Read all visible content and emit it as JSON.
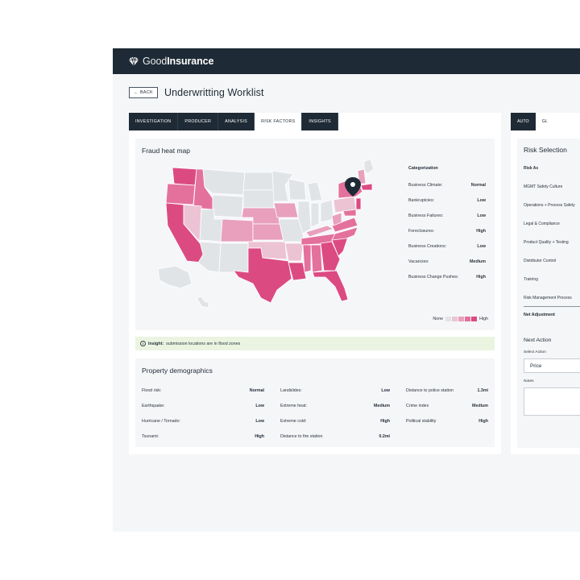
{
  "app": {
    "brand_light": "Good",
    "brand_bold": "Insurance",
    "colors": {
      "topbar": "#1e2a35",
      "accent": "#e0457b",
      "insight_bg": "#eaf4e1"
    }
  },
  "header": {
    "back_label": "BACK",
    "title": "Underwritting Worklist"
  },
  "tabs": [
    {
      "label": "INVESTIGATION",
      "active": false
    },
    {
      "label": "PRODUCER",
      "active": false
    },
    {
      "label": "ANALYSIS",
      "active": false
    },
    {
      "label": "RISK FACTORS",
      "active": true
    },
    {
      "label": "INSIGHTS",
      "active": false
    }
  ],
  "heatmap": {
    "title": "Fraud heat map",
    "categorization_title": "Categorization",
    "categories": [
      {
        "label": "Business Climate:",
        "value": "Normal"
      },
      {
        "label": "Bankruptcies:",
        "value": "Low"
      },
      {
        "label": "Business Failures:",
        "value": "Low"
      },
      {
        "label": "Foreclosures:",
        "value": "High"
      },
      {
        "label": "Business Creations:",
        "value": "Low"
      },
      {
        "label": "Vacancies:",
        "value": "Medium"
      },
      {
        "label": "Business Change Pushes:",
        "value": "High"
      }
    ],
    "legend_low": "None",
    "legend_high": "High",
    "legend_colors": [
      "#e1e4e7",
      "#ecc3d3",
      "#e8a0bc",
      "#e4719c",
      "#dc4a82"
    ]
  },
  "insight": {
    "prefix": "Insight:",
    "text": "submission locations are in flood zones"
  },
  "demographics": {
    "title": "Property demographics",
    "rows": [
      [
        {
          "label": "Flood risk:",
          "value": "Normal"
        },
        {
          "label": "Landslides:",
          "value": "Low"
        },
        {
          "label": "Distance to police station",
          "value": "1.3mi"
        }
      ],
      [
        {
          "label": "Earthquake:",
          "value": "Low"
        },
        {
          "label": "Extreme heat:",
          "value": "Medium"
        },
        {
          "label": "Crime index",
          "value": "Medium"
        }
      ],
      [
        {
          "label": "Hurricane / Tornado:",
          "value": "Low"
        },
        {
          "label": "Extreme cold:",
          "value": "High"
        },
        {
          "label": "Political stability",
          "value": "High"
        }
      ],
      [
        {
          "label": "Tsunami:",
          "value": "High"
        },
        {
          "label": "Distance to fire station",
          "value": "0.2mi"
        },
        {
          "label": "",
          "value": ""
        }
      ]
    ]
  },
  "right": {
    "tabs": [
      {
        "label": "AUTO",
        "active": false
      },
      {
        "label": "GL",
        "active": true
      }
    ],
    "risk_title": "Risk Selection",
    "risk_items": [
      {
        "label": "Risk As",
        "bold": true
      },
      {
        "label": "MGMT Safety Culture",
        "bold": false
      },
      {
        "label": "Operations + Process Safety",
        "bold": false
      },
      {
        "label": "Legal & Compliance",
        "bold": false
      },
      {
        "label": "Product Quality + Testing",
        "bold": false
      },
      {
        "label": "Distributor Control",
        "bold": false
      },
      {
        "label": "Training",
        "bold": false
      },
      {
        "label": "Risk Management Process",
        "bold": false
      }
    ],
    "net_adjustment": "Net Adjustment",
    "next_action": "Next Action",
    "select_label": "Select Action",
    "select_value": "Price",
    "notes_label": "Notes"
  }
}
